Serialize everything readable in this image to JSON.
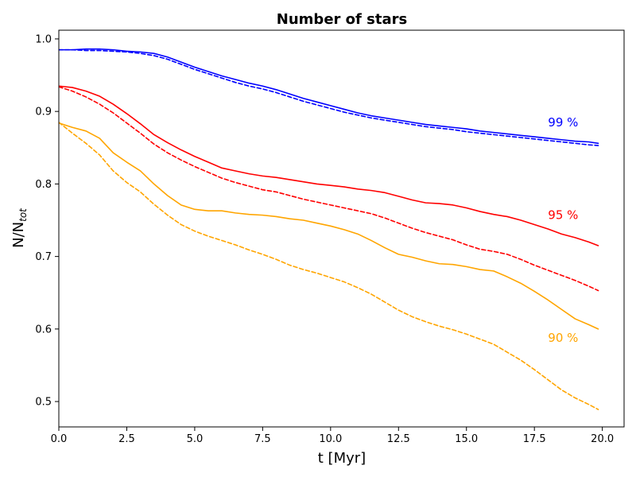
{
  "chart_data": {
    "type": "line",
    "title": "Number of stars",
    "xlabel": "t [Myr]",
    "ylabel_base": "N/N",
    "ylabel_sub": "tot",
    "xlim": [
      0,
      20.8
    ],
    "ylim": [
      0.465,
      1.012
    ],
    "xticks": [
      0,
      2.5,
      5,
      7.5,
      10,
      12.5,
      15,
      17.5,
      20
    ],
    "xtick_labels": [
      "0.0",
      "2.5",
      "5.0",
      "7.5",
      "10.0",
      "12.5",
      "15.0",
      "17.5",
      "20.0"
    ],
    "yticks": [
      0.5,
      0.6,
      0.7,
      0.8,
      0.9,
      1.0
    ],
    "ytick_labels": [
      "0.5",
      "0.6",
      "0.7",
      "0.8",
      "0.9",
      "1.0"
    ],
    "annotations": [
      {
        "text": "99 %",
        "color": "#0000ff",
        "x": 18.0,
        "y": 0.885
      },
      {
        "text": "95 %",
        "color": "#ff0000",
        "x": 18.0,
        "y": 0.757
      },
      {
        "text": "90 %",
        "color": "#ffa500",
        "x": 18.0,
        "y": 0.588
      }
    ],
    "series": [
      {
        "color": "#0000ff",
        "style": "solid",
        "x": [
          0,
          0.5,
          1,
          1.5,
          2,
          2.5,
          3,
          3.5,
          4,
          4.5,
          5,
          5.5,
          6,
          6.5,
          7,
          7.5,
          8,
          8.5,
          9,
          9.5,
          10,
          10.5,
          11,
          11.5,
          12,
          12.5,
          13,
          13.5,
          14,
          14.5,
          15,
          15.5,
          16,
          16.5,
          17,
          17.5,
          18,
          18.5,
          19,
          19.5,
          19.85
        ],
        "y": [
          0.985,
          0.985,
          0.986,
          0.986,
          0.985,
          0.983,
          0.982,
          0.98,
          0.975,
          0.968,
          0.961,
          0.955,
          0.949,
          0.944,
          0.939,
          0.935,
          0.93,
          0.924,
          0.918,
          0.913,
          0.908,
          0.903,
          0.898,
          0.894,
          0.891,
          0.888,
          0.885,
          0.882,
          0.88,
          0.878,
          0.876,
          0.873,
          0.871,
          0.869,
          0.867,
          0.865,
          0.863,
          0.861,
          0.859,
          0.858,
          0.856
        ]
      },
      {
        "color": "#0000ff",
        "style": "dashed",
        "x": [
          0,
          0.5,
          1,
          1.5,
          2,
          2.5,
          3,
          3.5,
          4,
          4.5,
          5,
          5.5,
          6,
          6.5,
          7,
          7.5,
          8,
          8.5,
          9,
          9.5,
          10,
          10.5,
          11,
          11.5,
          12,
          12.5,
          13,
          13.5,
          14,
          14.5,
          15,
          15.5,
          16,
          16.5,
          17,
          17.5,
          18,
          18.5,
          19,
          19.5,
          19.85
        ],
        "y": [
          0.985,
          0.985,
          0.984,
          0.984,
          0.983,
          0.982,
          0.98,
          0.977,
          0.972,
          0.965,
          0.958,
          0.952,
          0.946,
          0.94,
          0.935,
          0.931,
          0.926,
          0.92,
          0.914,
          0.909,
          0.904,
          0.899,
          0.895,
          0.891,
          0.888,
          0.885,
          0.882,
          0.879,
          0.877,
          0.875,
          0.872,
          0.87,
          0.868,
          0.866,
          0.864,
          0.862,
          0.86,
          0.858,
          0.856,
          0.854,
          0.853
        ]
      },
      {
        "color": "#ff0000",
        "style": "solid",
        "x": [
          0,
          0.5,
          1,
          1.5,
          2,
          2.5,
          3,
          3.5,
          4,
          4.5,
          5,
          5.5,
          6,
          6.5,
          7,
          7.5,
          8,
          8.5,
          9,
          9.5,
          10,
          10.5,
          11,
          11.5,
          12,
          12.5,
          13,
          13.5,
          14,
          14.5,
          15,
          15.5,
          16,
          16.5,
          17,
          17.5,
          18,
          18.5,
          19,
          19.5,
          19.85
        ],
        "y": [
          0.935,
          0.933,
          0.928,
          0.921,
          0.91,
          0.897,
          0.883,
          0.868,
          0.857,
          0.847,
          0.838,
          0.83,
          0.822,
          0.818,
          0.814,
          0.811,
          0.809,
          0.806,
          0.803,
          0.8,
          0.798,
          0.796,
          0.793,
          0.791,
          0.788,
          0.783,
          0.778,
          0.774,
          0.773,
          0.771,
          0.767,
          0.762,
          0.758,
          0.755,
          0.75,
          0.744,
          0.738,
          0.731,
          0.726,
          0.72,
          0.715
        ]
      },
      {
        "color": "#ff0000",
        "style": "dashed",
        "x": [
          0,
          0.5,
          1,
          1.5,
          2,
          2.5,
          3,
          3.5,
          4,
          4.5,
          5,
          5.5,
          6,
          6.5,
          7,
          7.5,
          8,
          8.5,
          9,
          9.5,
          10,
          10.5,
          11,
          11.5,
          12,
          12.5,
          13,
          13.5,
          14,
          14.5,
          15,
          15.5,
          16,
          16.5,
          17,
          17.5,
          18,
          18.5,
          19,
          19.5,
          19.85
        ],
        "y": [
          0.934,
          0.928,
          0.92,
          0.91,
          0.898,
          0.884,
          0.87,
          0.855,
          0.843,
          0.833,
          0.824,
          0.816,
          0.808,
          0.802,
          0.797,
          0.792,
          0.789,
          0.784,
          0.779,
          0.775,
          0.771,
          0.767,
          0.763,
          0.759,
          0.753,
          0.746,
          0.739,
          0.733,
          0.728,
          0.723,
          0.716,
          0.71,
          0.707,
          0.703,
          0.696,
          0.688,
          0.681,
          0.674,
          0.667,
          0.659,
          0.653
        ]
      },
      {
        "color": "#ffa500",
        "style": "solid",
        "x": [
          0,
          0.5,
          1,
          1.5,
          2,
          2.5,
          3,
          3.5,
          4,
          4.5,
          5,
          5.5,
          6,
          6.5,
          7,
          7.5,
          8,
          8.5,
          9,
          9.5,
          10,
          10.5,
          11,
          11.5,
          12,
          12.5,
          13,
          13.5,
          14,
          14.5,
          15,
          15.5,
          16,
          16.5,
          17,
          17.5,
          18,
          18.5,
          19,
          19.5,
          19.85
        ],
        "y": [
          0.884,
          0.878,
          0.873,
          0.863,
          0.843,
          0.83,
          0.818,
          0.8,
          0.784,
          0.771,
          0.765,
          0.763,
          0.763,
          0.76,
          0.758,
          0.757,
          0.755,
          0.752,
          0.75,
          0.746,
          0.742,
          0.737,
          0.731,
          0.722,
          0.712,
          0.703,
          0.699,
          0.694,
          0.69,
          0.689,
          0.686,
          0.682,
          0.68,
          0.672,
          0.663,
          0.652,
          0.64,
          0.627,
          0.614,
          0.606,
          0.6
        ]
      },
      {
        "color": "#ffa500",
        "style": "dashed",
        "x": [
          0,
          0.5,
          1,
          1.5,
          2,
          2.5,
          3,
          3.5,
          4,
          4.5,
          5,
          5.5,
          6,
          6.5,
          7,
          7.5,
          8,
          8.5,
          9,
          9.5,
          10,
          10.5,
          11,
          11.5,
          12,
          12.5,
          13,
          13.5,
          14,
          14.5,
          15,
          15.5,
          16,
          16.5,
          17,
          17.5,
          18,
          18.5,
          19,
          19.5,
          19.85
        ],
        "y": [
          0.885,
          0.87,
          0.856,
          0.84,
          0.818,
          0.802,
          0.789,
          0.772,
          0.757,
          0.744,
          0.735,
          0.728,
          0.722,
          0.716,
          0.709,
          0.703,
          0.696,
          0.688,
          0.682,
          0.677,
          0.671,
          0.665,
          0.657,
          0.648,
          0.637,
          0.626,
          0.617,
          0.61,
          0.604,
          0.599,
          0.593,
          0.586,
          0.579,
          0.568,
          0.557,
          0.544,
          0.53,
          0.516,
          0.505,
          0.496,
          0.489
        ]
      }
    ]
  }
}
